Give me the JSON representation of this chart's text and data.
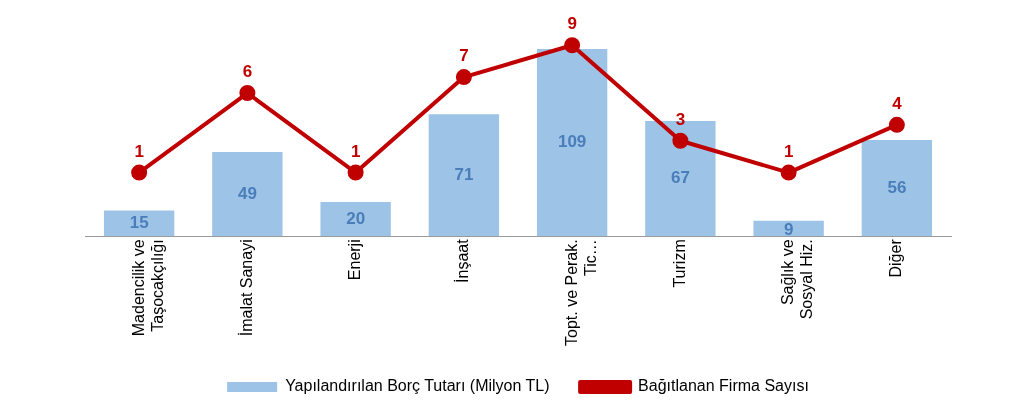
{
  "chart_data": {
    "type": "bar",
    "categories": [
      "Madencilik ve Taşocakçılığı",
      "İmalat Sanayi",
      "Enerji",
      "İnşaat",
      "Topt. ve Perak. Tic…",
      "Turizm",
      "Sağlık ve Sosyal Hiz.",
      "Diğer"
    ],
    "series": [
      {
        "name": "Yapılandırılan Borç Tutarı (Milyon TL)",
        "color": "#9dc3e6",
        "values": [
          15,
          49,
          20,
          71,
          109,
          67,
          9,
          56
        ]
      },
      {
        "name": "Bağıtlanan Firma Sayısı",
        "type": "line",
        "axis": "y2",
        "color": "#c00000",
        "values": [
          1,
          6,
          1,
          7,
          9,
          3,
          1,
          4
        ]
      }
    ],
    "data_labels": true,
    "legend": "bottom",
    "marker": "circle",
    "grid": false
  }
}
